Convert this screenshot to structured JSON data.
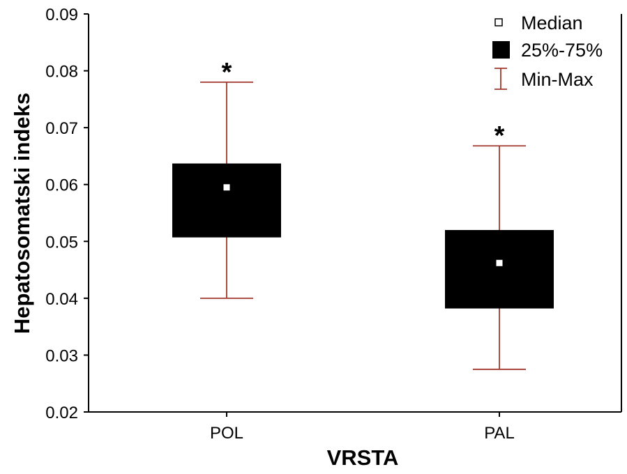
{
  "chart_data": {
    "type": "box",
    "xlabel": "VRSTA",
    "ylabel": "Hepatosomatski indeks",
    "ylim": [
      0.02,
      0.09
    ],
    "yticks": [
      "0.02",
      "0.03",
      "0.04",
      "0.05",
      "0.06",
      "0.07",
      "0.08",
      "0.09"
    ],
    "categories": [
      "POL",
      "PAL"
    ],
    "boxes": [
      {
        "category": "POL",
        "min": 0.04,
        "q1": 0.0507,
        "median": 0.0595,
        "q3": 0.0637,
        "max": 0.078,
        "annotation": "*"
      },
      {
        "category": "PAL",
        "min": 0.0275,
        "q1": 0.0382,
        "median": 0.0462,
        "q3": 0.052,
        "max": 0.0668,
        "annotation": "*"
      }
    ],
    "legend": {
      "position": "top-right",
      "items": [
        "Median",
        "25%-75%",
        "Min-Max"
      ]
    },
    "colors": {
      "box": "#000000",
      "median_marker": "#ffffff",
      "whisker": "#a0382e"
    },
    "grid": false
  }
}
